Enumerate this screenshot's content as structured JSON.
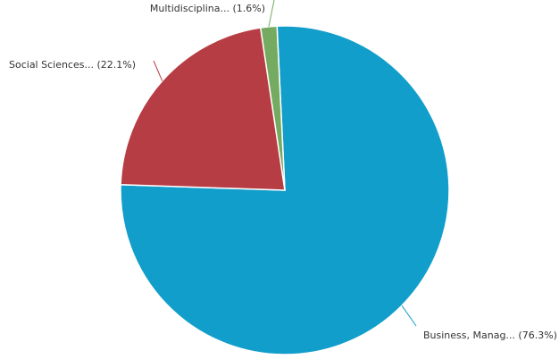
{
  "chart_data": {
    "type": "pie",
    "slices": [
      {
        "label": "Business, Manag... (76.3%)",
        "value": 76.3,
        "color": "#129ecb"
      },
      {
        "label": "Social Sciences... (22.1%)",
        "value": 22.1,
        "color": "#b73d45"
      },
      {
        "label": "Multidisciplina... (1.6%)",
        "value": 1.6,
        "color": "#74ab60"
      }
    ]
  }
}
